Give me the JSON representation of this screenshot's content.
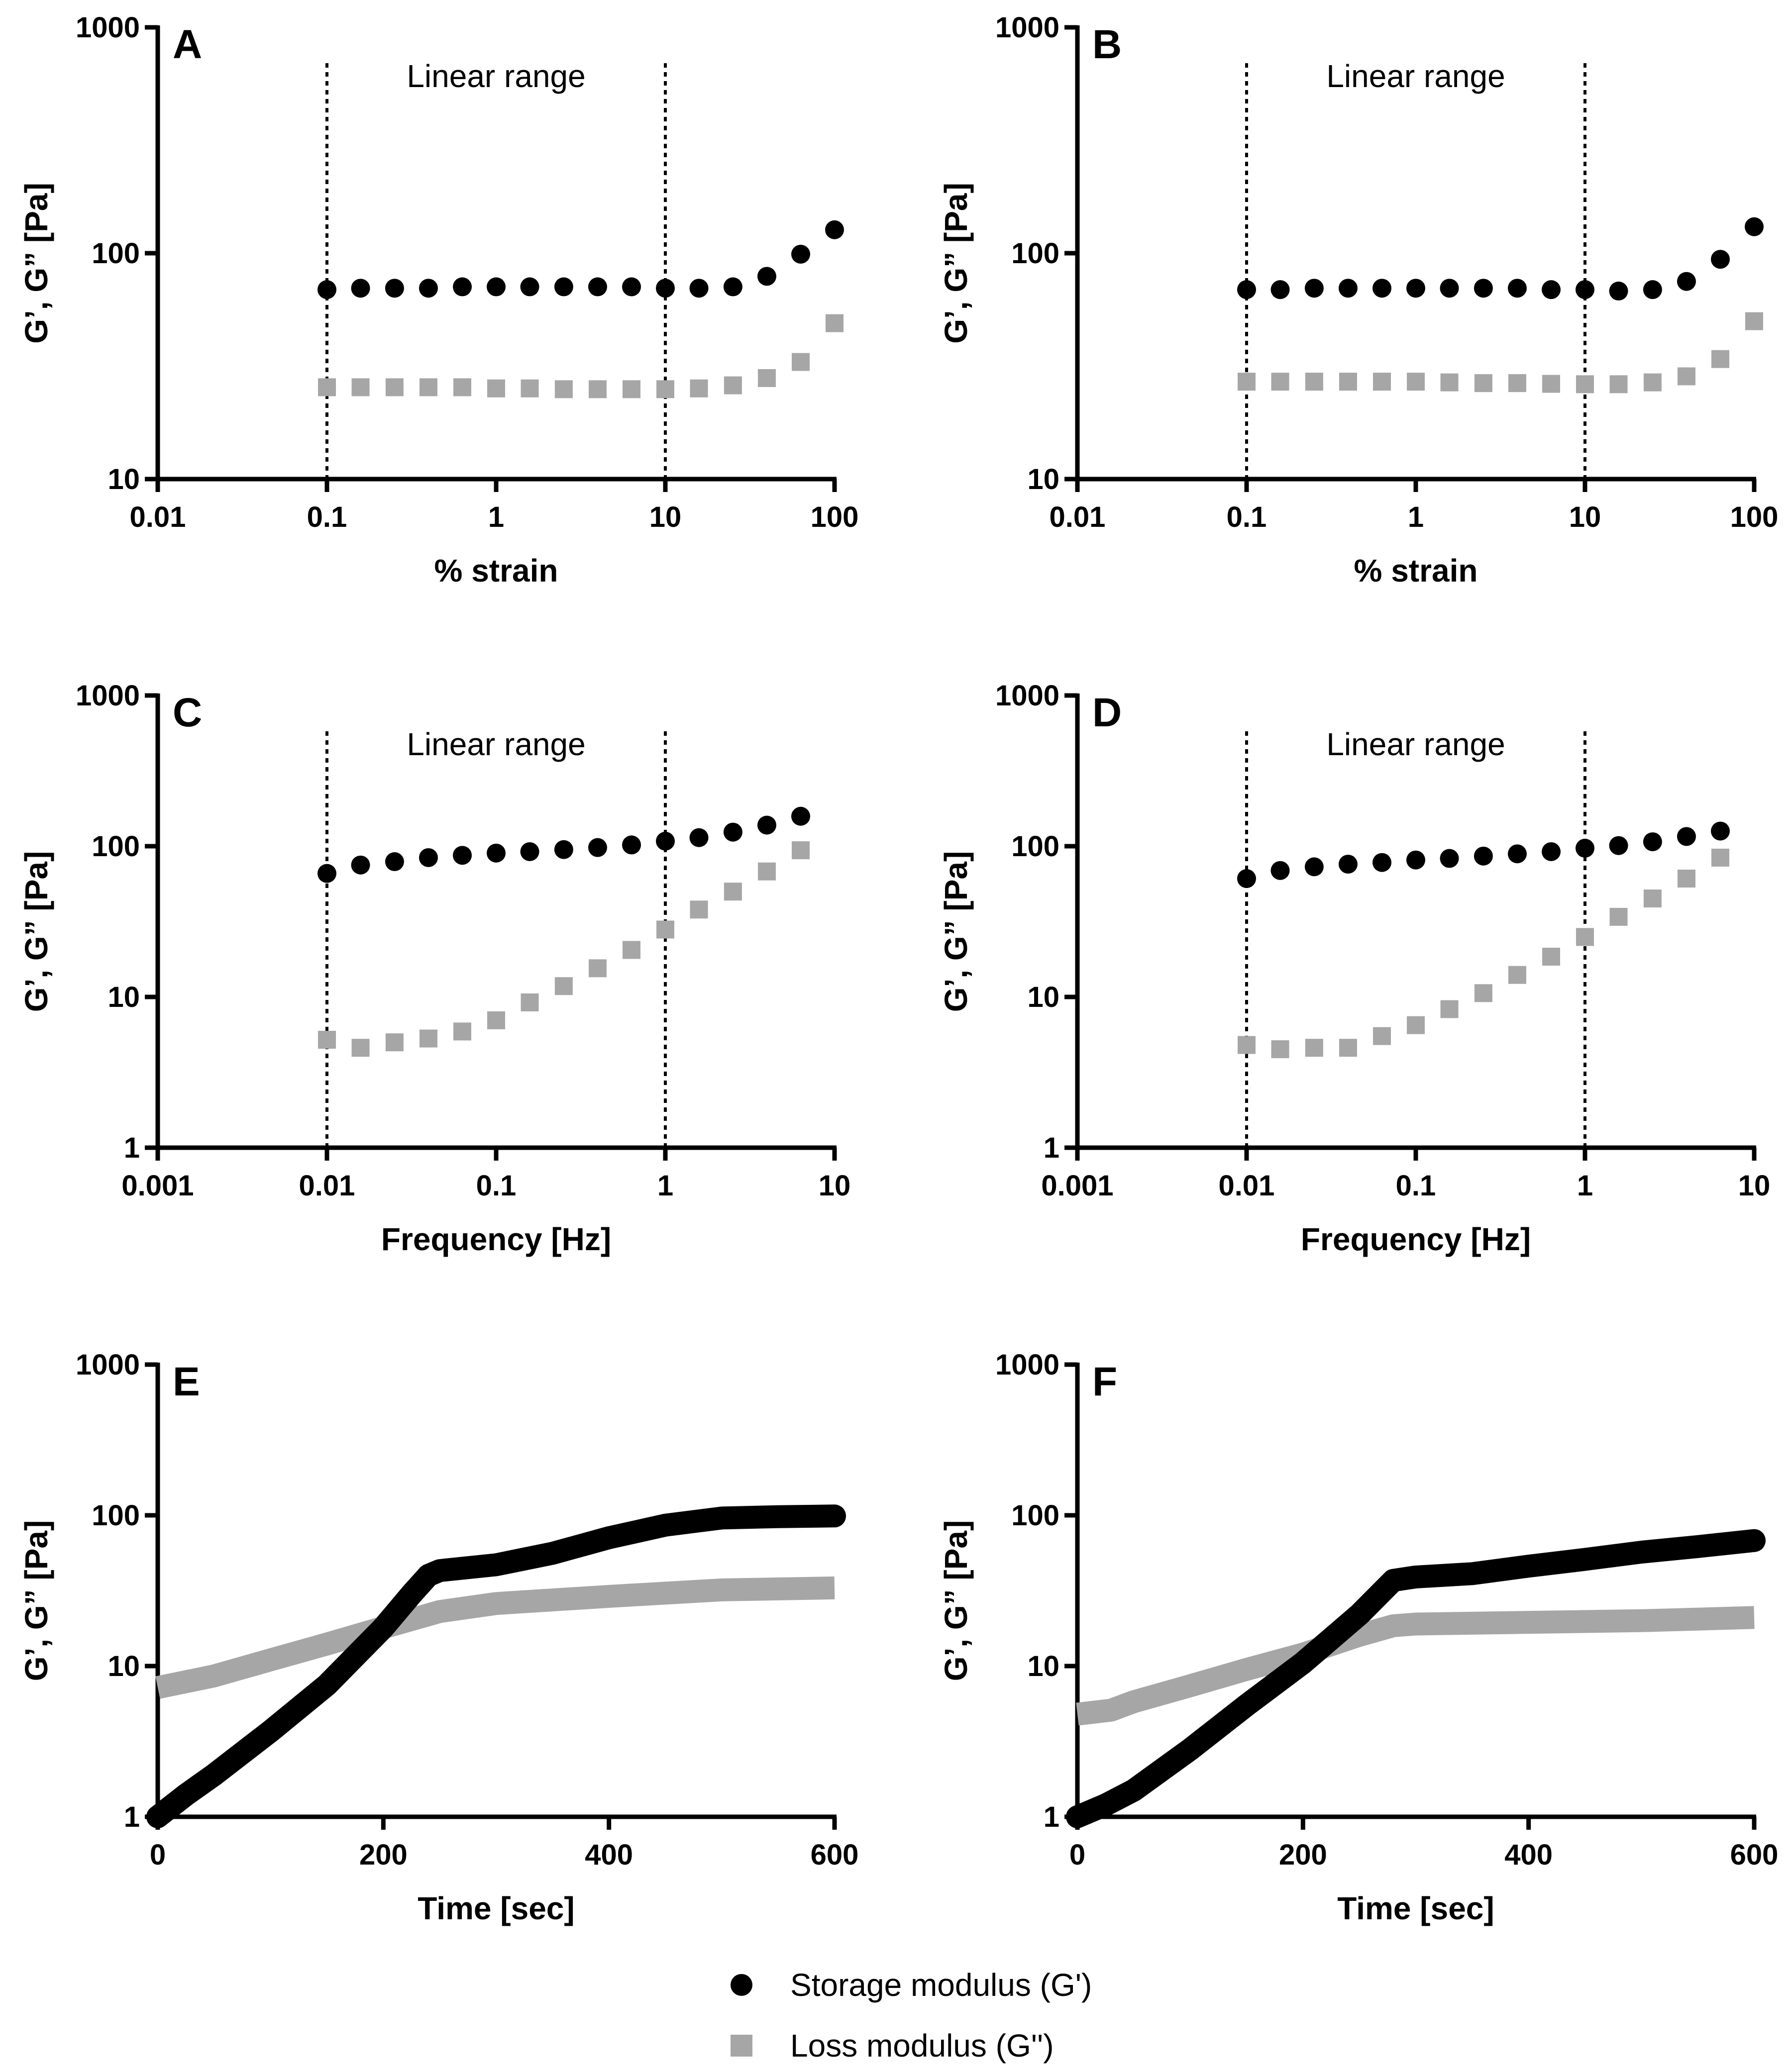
{
  "colors": {
    "storage": "#000000",
    "loss": "#a6a6a6",
    "axis": "#000000"
  },
  "legend": {
    "items": [
      {
        "label": "Storage modulus (G')",
        "marker": "circle",
        "color": "#000000"
      },
      {
        "label": "Loss modulus (G'')",
        "marker": "square",
        "color": "#a6a6a6"
      }
    ]
  },
  "chart_data": [
    {
      "panel": "A",
      "type": "scatter",
      "xscale": "log",
      "yscale": "log",
      "xlabel": "% strain",
      "ylabel": "G’, G” [Pa]",
      "xlim": [
        0.01,
        100
      ],
      "ylim": [
        10,
        1000
      ],
      "xticks": [
        0.01,
        0.1,
        1,
        10,
        100
      ],
      "xtick_labels": [
        "0.01",
        "0.1",
        "1",
        "10",
        "100"
      ],
      "yticks": [
        10,
        100,
        1000
      ],
      "ytick_labels": [
        "10",
        "100",
        "1000"
      ],
      "vlines": [
        0.1,
        10
      ],
      "annotation": "Linear range",
      "series": [
        {
          "name": "Storage modulus (G')",
          "marker": "circle",
          "x": [
            0.1,
            0.158,
            0.251,
            0.398,
            0.631,
            1,
            1.58,
            2.51,
            3.98,
            6.31,
            10,
            15.8,
            25.1,
            39.8,
            63.1,
            100
          ],
          "y": [
            69,
            70,
            70,
            70,
            71,
            71,
            71,
            71,
            71,
            71,
            70,
            70,
            71,
            79,
            99,
            127
          ]
        },
        {
          "name": "Loss modulus (G'')",
          "marker": "square",
          "x": [
            0.1,
            0.158,
            0.251,
            0.398,
            0.631,
            1,
            1.58,
            2.51,
            3.98,
            6.31,
            10,
            15.8,
            25.1,
            39.8,
            63.1,
            100
          ],
          "y": [
            25.5,
            25.5,
            25.5,
            25.5,
            25.5,
            25.2,
            25.2,
            25,
            25,
            25,
            25,
            25.2,
            26,
            28,
            33,
            49
          ]
        }
      ]
    },
    {
      "panel": "B",
      "type": "scatter",
      "xscale": "log",
      "yscale": "log",
      "xlabel": "% strain",
      "ylabel": "G’, G” [Pa]",
      "xlim": [
        0.01,
        100
      ],
      "ylim": [
        10,
        1000
      ],
      "xticks": [
        0.01,
        0.1,
        1,
        10,
        100
      ],
      "xtick_labels": [
        "0.01",
        "0.1",
        "1",
        "10",
        "100"
      ],
      "yticks": [
        10,
        100,
        1000
      ],
      "ytick_labels": [
        "10",
        "100",
        "1000"
      ],
      "vlines": [
        0.1,
        10
      ],
      "annotation": "Linear range",
      "series": [
        {
          "name": "Storage modulus (G')",
          "marker": "circle",
          "x": [
            0.1,
            0.158,
            0.251,
            0.398,
            0.631,
            1,
            1.58,
            2.51,
            3.98,
            6.31,
            10,
            15.8,
            25.1,
            39.8,
            63.1,
            100
          ],
          "y": [
            69,
            69,
            70,
            70,
            70,
            70,
            70,
            70,
            70,
            69,
            69,
            68,
            69,
            75,
            94,
            131
          ]
        },
        {
          "name": "Loss modulus (G'')",
          "marker": "square",
          "x": [
            0.1,
            0.158,
            0.251,
            0.398,
            0.631,
            1,
            1.58,
            2.51,
            3.98,
            6.31,
            10,
            15.8,
            25.1,
            39.8,
            63.1,
            100
          ],
          "y": [
            27,
            27,
            27,
            27,
            27,
            27,
            26.8,
            26.6,
            26.6,
            26.4,
            26.3,
            26.3,
            26.8,
            28.5,
            34,
            50
          ]
        }
      ]
    },
    {
      "panel": "C",
      "type": "scatter",
      "xscale": "log",
      "yscale": "log",
      "xlabel": "Frequency [Hz]",
      "ylabel": "G’, G” [Pa]",
      "xlim": [
        0.001,
        10
      ],
      "ylim": [
        1,
        1000
      ],
      "xticks": [
        0.001,
        0.01,
        0.1,
        1,
        10
      ],
      "xtick_labels": [
        "0.001",
        "0.01",
        "0.1",
        "1",
        "10"
      ],
      "yticks": [
        1,
        10,
        100,
        1000
      ],
      "ytick_labels": [
        "1",
        "10",
        "100",
        "1000"
      ],
      "vlines": [
        0.01,
        1
      ],
      "annotation": "Linear range",
      "series": [
        {
          "name": "Storage modulus (G')",
          "marker": "circle",
          "x": [
            0.01,
            0.0158,
            0.0251,
            0.0398,
            0.0631,
            0.1,
            0.158,
            0.251,
            0.398,
            0.631,
            1,
            1.58,
            2.51,
            3.98,
            6.31
          ],
          "y": [
            66,
            75,
            79,
            84,
            87,
            90,
            92,
            95,
            98,
            102,
            108,
            114,
            124,
            138,
            158
          ]
        },
        {
          "name": "Loss modulus (G'')",
          "marker": "square",
          "x": [
            0.01,
            0.0158,
            0.0251,
            0.0398,
            0.0631,
            0.1,
            0.158,
            0.251,
            0.398,
            0.631,
            1,
            1.58,
            2.51,
            3.98,
            6.31
          ],
          "y": [
            5.2,
            4.6,
            5.0,
            5.3,
            5.9,
            7.0,
            9.2,
            11.8,
            15.5,
            20.5,
            28,
            38,
            50,
            68,
            94
          ]
        }
      ]
    },
    {
      "panel": "D",
      "type": "scatter",
      "xscale": "log",
      "yscale": "log",
      "xlabel": "Frequency [Hz]",
      "ylabel": "G’, G” [Pa]",
      "xlim": [
        0.001,
        10
      ],
      "ylim": [
        1,
        1000
      ],
      "xticks": [
        0.001,
        0.01,
        0.1,
        1,
        10
      ],
      "xtick_labels": [
        "0.001",
        "0.01",
        "0.1",
        "1",
        "10"
      ],
      "yticks": [
        1,
        10,
        100,
        1000
      ],
      "ytick_labels": [
        "1",
        "10",
        "100",
        "1000"
      ],
      "vlines": [
        0.01,
        1
      ],
      "annotation": "Linear range",
      "series": [
        {
          "name": "Storage modulus (G')",
          "marker": "circle",
          "x": [
            0.01,
            0.0158,
            0.0251,
            0.0398,
            0.0631,
            0.1,
            0.158,
            0.251,
            0.398,
            0.631,
            1,
            1.58,
            2.51,
            3.98,
            6.31
          ],
          "y": [
            61,
            69,
            73,
            76,
            78,
            81,
            83,
            86,
            89,
            92,
            97,
            101,
            107,
            116,
            126
          ]
        },
        {
          "name": "Loss modulus (G'')",
          "marker": "square",
          "x": [
            0.01,
            0.0158,
            0.0251,
            0.0398,
            0.0631,
            0.1,
            0.158,
            0.251,
            0.398,
            0.631,
            1,
            1.58,
            2.51,
            3.98,
            6.31
          ],
          "y": [
            4.8,
            4.5,
            4.6,
            4.6,
            5.5,
            6.5,
            8.3,
            10.6,
            14.0,
            18.5,
            25,
            34,
            45,
            61,
            84
          ]
        }
      ]
    },
    {
      "panel": "E",
      "type": "line",
      "xscale": "linear",
      "yscale": "log",
      "xlabel": "Time [sec]",
      "ylabel": "G’, G” [Pa]",
      "xlim": [
        0,
        600
      ],
      "ylim": [
        1,
        1000
      ],
      "xticks": [
        0,
        200,
        400,
        600
      ],
      "xtick_labels": [
        "0",
        "200",
        "400",
        "600"
      ],
      "yticks": [
        1,
        10,
        100,
        1000
      ],
      "ytick_labels": [
        "1",
        "10",
        "100",
        "1000"
      ],
      "series": [
        {
          "name": "Storage modulus (G')",
          "marker": "circle",
          "x": [
            0,
            25,
            50,
            100,
            150,
            200,
            225,
            240,
            250,
            300,
            350,
            400,
            450,
            500,
            550,
            600
          ],
          "y": [
            1.0,
            1.4,
            1.9,
            3.7,
            7.5,
            18,
            30,
            40,
            43,
            47,
            56,
            71,
            86,
            96,
            98,
            99
          ]
        },
        {
          "name": "Loss modulus (G'')",
          "marker": "square",
          "x": [
            0,
            50,
            100,
            150,
            200,
            250,
            300,
            400,
            500,
            600
          ],
          "y": [
            7.2,
            8.6,
            11,
            14,
            18,
            23,
            26,
            29,
            32,
            33
          ]
        }
      ]
    },
    {
      "panel": "F",
      "type": "line",
      "xscale": "linear",
      "yscale": "log",
      "xlabel": "Time [sec]",
      "ylabel": "G’, G” [Pa]",
      "xlim": [
        0,
        600
      ],
      "ylim": [
        1,
        1000
      ],
      "xticks": [
        0,
        200,
        400,
        600
      ],
      "xtick_labels": [
        "0",
        "200",
        "400",
        "600"
      ],
      "yticks": [
        1,
        10,
        100,
        1000
      ],
      "ytick_labels": [
        "1",
        "10",
        "100",
        "1000"
      ],
      "series": [
        {
          "name": "Storage modulus (G')",
          "marker": "circle",
          "x": [
            0,
            25,
            50,
            100,
            150,
            200,
            250,
            280,
            300,
            350,
            400,
            450,
            500,
            550,
            600
          ],
          "y": [
            1.0,
            1.2,
            1.5,
            2.8,
            5.5,
            10.5,
            22,
            37,
            39,
            41,
            46,
            51,
            57,
            62,
            68
          ]
        },
        {
          "name": "Loss modulus (G'')",
          "marker": "square",
          "x": [
            0,
            30,
            50,
            100,
            150,
            200,
            250,
            280,
            300,
            400,
            500,
            600
          ],
          "y": [
            4.8,
            5.1,
            5.8,
            7.4,
            9.5,
            12,
            16,
            18.5,
            19,
            19.5,
            20,
            21
          ]
        }
      ]
    }
  ]
}
